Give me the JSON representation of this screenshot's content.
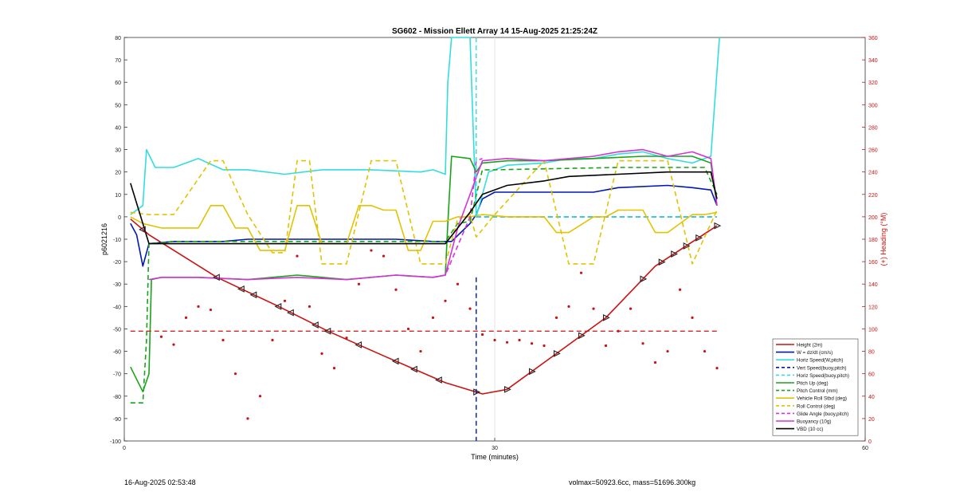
{
  "chart_data": {
    "type": "line",
    "title": "SG602 - Mission Ellett Array 14 15-Aug-2025 21:25:24Z",
    "xlabel": "Time (minutes)",
    "ylabel_left": "p6021216",
    "ylabel_right": "(+) Heading (°M)",
    "xlim": [
      0,
      60
    ],
    "ylim_left": [
      -100,
      80
    ],
    "ylim_right": [
      0,
      360
    ],
    "x_ticks": [
      0,
      30,
      60
    ],
    "y_ticks_left": [
      -100,
      -90,
      -80,
      -70,
      -60,
      -50,
      -40,
      -30,
      -20,
      -10,
      0,
      10,
      20,
      30,
      40,
      50,
      60,
      70,
      80
    ],
    "y_ticks_right": [
      0,
      20,
      40,
      60,
      80,
      100,
      120,
      140,
      160,
      180,
      200,
      220,
      240,
      260,
      280,
      300,
      320,
      340,
      360
    ],
    "grid": "x only at 30",
    "legend_position": "bottom-right",
    "colors": {
      "height": "#cc1111",
      "w": "#0018b0",
      "horiz_speed": "#33dddd",
      "vert_speed_buoy": "#0018b0",
      "horiz_speed_buoy": "#33dddd",
      "pitch_up": "#18a418",
      "pitch_control": "#18a418",
      "roll": "#e3c200",
      "roll_control": "#e3c200",
      "glide_angle": "#d633d6",
      "buoyancy": "#d633d6",
      "vbd": "#000000",
      "heading": "#cc1111"
    },
    "series": [
      {
        "name": "Height (2m)",
        "style": "solid",
        "color": "#cc1111",
        "x": [
          0.5,
          2,
          7.5,
          12.5,
          16.5,
          21,
          26,
          29,
          31,
          35,
          39,
          43,
          48
        ],
        "y": [
          -1,
          -8,
          -27,
          -40,
          -51,
          -62,
          -74,
          -79,
          -77,
          -61,
          -45,
          -22,
          -4
        ]
      },
      {
        "name": "W = dz/dt (cm/s)",
        "style": "solid",
        "color": "#0018b0",
        "x": [
          0.5,
          1,
          1.5,
          2,
          4,
          8,
          10,
          14,
          18,
          22,
          25,
          26.5,
          28,
          28.5,
          29,
          30,
          34,
          38,
          40,
          44,
          46,
          47.5,
          48
        ],
        "y": [
          -3,
          -8,
          -22,
          -12,
          -11,
          -11,
          -10,
          -10,
          -10,
          -10,
          -11,
          -11,
          -3,
          1,
          8,
          11,
          11,
          11,
          13,
          14,
          13,
          12,
          5
        ]
      },
      {
        "name": "Horiz Speed(W,pitch)",
        "style": "solid",
        "color": "#33dddd",
        "x": [
          0.5,
          1.5,
          1.8,
          2.5,
          4,
          6,
          8,
          10,
          13,
          16,
          20,
          24,
          25,
          26,
          26.2,
          26.5,
          28,
          28.5,
          29.5,
          31,
          34,
          36,
          38,
          40,
          42,
          44,
          46,
          47.5,
          48,
          48.2
        ],
        "y": [
          1,
          5,
          30,
          22,
          22,
          26,
          21,
          21,
          19,
          21,
          21,
          20,
          21,
          19,
          60,
          85,
          85,
          0,
          20,
          23,
          24,
          26,
          26,
          28,
          29,
          26,
          24,
          27,
          65,
          85
        ]
      },
      {
        "name": "Vert Speed(buoy,pitch)",
        "style": "dashed",
        "color": "#0018b0",
        "x": [
          28.5,
          29,
          48
        ],
        "y": [
          0,
          0,
          0
        ]
      },
      {
        "name": "Horiz Speed(buoy,pitch)",
        "style": "dashed",
        "color": "#33dddd",
        "x": [
          28.5,
          29,
          48
        ],
        "y": [
          0,
          0,
          0
        ]
      },
      {
        "name": "Pitch Up (deg)",
        "style": "solid",
        "color": "#18a418",
        "x": [
          0.5,
          1.5,
          2,
          2.2,
          3,
          6,
          10,
          14,
          18,
          22,
          25,
          26,
          26.2,
          26.5,
          28,
          28.5,
          29,
          31,
          34,
          38,
          42,
          46,
          47.5,
          48
        ],
        "y": [
          -67,
          -78,
          -70,
          -28,
          -27,
          -27,
          -28,
          -26,
          -28,
          -26,
          -27,
          -26,
          -3,
          27,
          26,
          20,
          24,
          25,
          25,
          26,
          27,
          27,
          24,
          5
        ]
      },
      {
        "name": "Pitch Control (mm)",
        "style": "dashed",
        "color": "#18a418",
        "x": [
          0.5,
          1.5,
          1.8,
          2,
          4,
          26,
          27,
          28,
          29,
          30,
          40,
          47,
          48
        ],
        "y": [
          -83,
          -83,
          -55,
          -12,
          -11,
          -11,
          -3,
          -2,
          21,
          21,
          22,
          22,
          10
        ]
      },
      {
        "name": "Vehicle Roll Stbd (deg)",
        "style": "solid",
        "color": "#e3c200",
        "x": [
          0.5,
          1.5,
          3,
          6,
          7,
          8,
          9,
          10,
          11,
          13,
          14,
          15,
          16,
          18,
          19,
          20,
          21,
          22,
          23,
          24,
          25,
          26,
          27,
          28,
          29,
          31,
          34,
          35,
          36,
          38,
          39,
          40,
          42,
          43,
          44,
          46,
          47,
          48
        ],
        "y": [
          0,
          -3,
          -5,
          -5,
          5,
          5,
          -5,
          -5,
          -15,
          -15,
          5,
          5,
          -12,
          -12,
          5,
          5,
          3,
          3,
          -15,
          -15,
          -2,
          -2,
          0,
          0,
          1,
          0,
          0,
          -7,
          -7,
          0,
          0,
          3,
          3,
          -7,
          -7,
          1,
          1,
          2
        ]
      },
      {
        "name": "Roll Control (deg)",
        "style": "dashed",
        "color": "#e3c200",
        "x": [
          0.5,
          2,
          4,
          7,
          8,
          10,
          12,
          13,
          14,
          15,
          16,
          18,
          20,
          22,
          24,
          26,
          27,
          28,
          28.5,
          30,
          34,
          36,
          38,
          40,
          42,
          44,
          46,
          48
        ],
        "y": [
          2,
          1,
          1,
          25,
          25,
          1,
          -16,
          -16,
          25,
          25,
          -21,
          -21,
          25,
          25,
          -21,
          -21,
          -1,
          1,
          -9,
          1,
          25,
          -21,
          -21,
          25,
          25,
          25,
          -21,
          3
        ]
      },
      {
        "name": "Glide Angle (buoy,pitch)",
        "style": "dashed",
        "color": "#d633d6",
        "x": [
          25,
          26,
          28,
          28.5,
          29
        ],
        "y": [
          -27,
          -26,
          0,
          25,
          26
        ]
      },
      {
        "name": "Buoyancy (10g)",
        "style": "solid",
        "color": "#d633d6",
        "x": [
          2,
          3,
          6,
          10,
          14,
          18,
          22,
          25,
          26,
          27,
          28,
          29,
          31,
          34,
          38,
          40,
          42,
          44,
          46,
          47.5,
          48
        ],
        "y": [
          -28,
          -27,
          -27,
          -28,
          -27,
          -28,
          -26,
          -27,
          -26,
          -5,
          10,
          25,
          26,
          25,
          27,
          29,
          30,
          27,
          29,
          26,
          5
        ]
      },
      {
        "name": "VBD (10 cc)",
        "style": "solid",
        "color": "#000000",
        "x": [
          0.5,
          1.5,
          2,
          4,
          10,
          20,
          26,
          28,
          29,
          31,
          34,
          36,
          40,
          44,
          46,
          47.5,
          48
        ],
        "y": [
          15,
          -3,
          -12,
          -12,
          -12,
          -12,
          -12,
          2,
          10,
          14,
          16,
          18,
          19,
          20,
          20,
          20,
          8
        ]
      },
      {
        "name": "Heading",
        "style": "dots",
        "color": "#cc1111",
        "axis": "right",
        "x": [
          3,
          4,
          5,
          6,
          7,
          8,
          9,
          10,
          11,
          12,
          13,
          14,
          15,
          16,
          17,
          18,
          19,
          20,
          21,
          22,
          23,
          24,
          25,
          26,
          27,
          28,
          29,
          30,
          31,
          32,
          33,
          34,
          35,
          36,
          37,
          38,
          39,
          40,
          41,
          42,
          43,
          44,
          45,
          46,
          47,
          48
        ],
        "y": [
          93,
          86,
          110,
          120,
          117,
          90,
          60,
          20,
          40,
          90,
          125,
          165,
          120,
          78,
          65,
          92,
          140,
          170,
          165,
          135,
          100,
          80,
          110,
          125,
          140,
          118,
          95,
          90,
          88,
          90,
          87,
          85,
          110,
          120,
          150,
          118,
          85,
          98,
          118,
          87,
          70,
          80,
          135,
          110,
          80,
          65
        ]
      }
    ],
    "markers_on_height_x": [
      1.5,
      7.5,
      9.5,
      10.5,
      12.5,
      13.5,
      15.5,
      16.5,
      19,
      22,
      23.5,
      25.5,
      28.5,
      31,
      33,
      35,
      37,
      39,
      42,
      43.5,
      44.5,
      45.5,
      46.5,
      48
    ]
  },
  "footer": {
    "left": "16-Aug-2025 02:53:48",
    "right": "volmax=50923.6cc, mass=51696.300kg"
  }
}
